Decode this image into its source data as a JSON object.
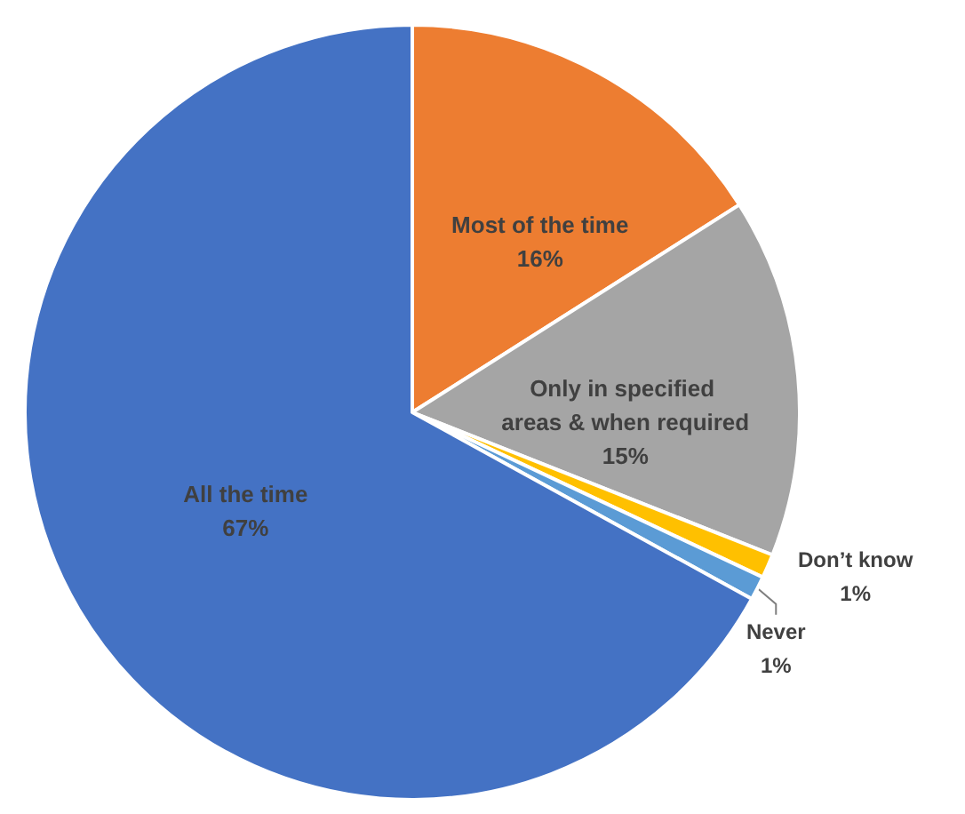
{
  "chart_data": {
    "type": "pie",
    "categories": [
      "Most of the time",
      "Only in specified areas & when required",
      "Don’t know",
      "Never",
      "All the time"
    ],
    "values": [
      16,
      15,
      1,
      1,
      67
    ],
    "colors": [
      "#ed7d31",
      "#a5a5a5",
      "#ffc000",
      "#5b9bd5",
      "#4472c4"
    ],
    "value_labels": [
      "16%",
      "15%",
      "1%",
      "1%",
      "67%"
    ],
    "legend": false
  }
}
